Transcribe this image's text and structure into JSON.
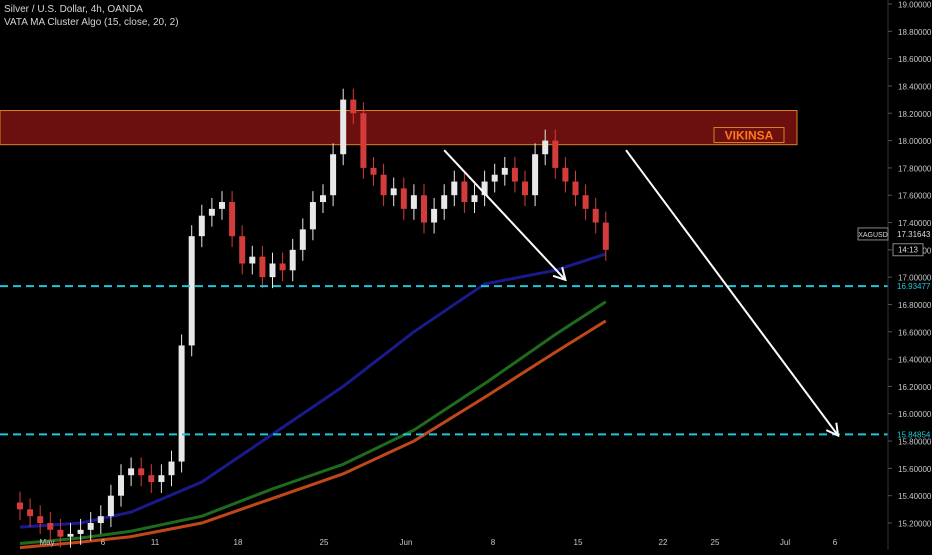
{
  "header": {
    "symbol_line": "Silver / U.S. Dollar, 4h, OANDA",
    "indicator_line": "VATA MA Cluster Algo (15, close, 20, 2)"
  },
  "chart_data": {
    "type": "line",
    "ylim": [
      15.15,
      19.0
    ],
    "y_ticks": [
      "19.00000",
      "18.80000",
      "18.60000",
      "18.40000",
      "18.20000",
      "18.00000",
      "17.80000",
      "17.60000",
      "17.40000",
      "17.20000",
      "17.00000",
      "16.80000",
      "16.60000",
      "16.40000",
      "16.20000",
      "16.00000",
      "15.80000",
      "15.60000",
      "15.40000",
      "15.20000"
    ],
    "x_ticks": [
      "May",
      "6",
      "11",
      "18",
      "25",
      "Jun",
      "8",
      "15",
      "22",
      "25",
      "Jul",
      "6"
    ],
    "series": [
      {
        "color": "#1a1a8c",
        "x": [
          0,
          6,
          11,
          18,
          25,
          32,
          39,
          46,
          53,
          58
        ],
        "values": [
          15.17,
          15.2,
          15.28,
          15.5,
          15.85,
          16.2,
          16.6,
          16.95,
          17.05,
          17.17
        ]
      },
      {
        "color": "#1e6b1e",
        "x": [
          0,
          6,
          11,
          18,
          25,
          32,
          39,
          46,
          53,
          58
        ],
        "values": [
          15.05,
          15.09,
          15.14,
          15.25,
          15.45,
          15.63,
          15.88,
          16.22,
          16.58,
          16.82
        ]
      },
      {
        "color": "#c0471a",
        "x": [
          0,
          6,
          11,
          18,
          25,
          32,
          39,
          46,
          53,
          58
        ],
        "values": [
          15.02,
          15.06,
          15.1,
          15.2,
          15.38,
          15.56,
          15.8,
          16.12,
          16.45,
          16.68
        ]
      }
    ],
    "price_bars": {
      "x": [
        0,
        1,
        2,
        3,
        4,
        5,
        6,
        7,
        8,
        9,
        10,
        11,
        12,
        13,
        14,
        15,
        16,
        17,
        18,
        19,
        20,
        21,
        22,
        23,
        24,
        25,
        26,
        27,
        28,
        29,
        30,
        31,
        32,
        33,
        34,
        35,
        36,
        37,
        38,
        39,
        40,
        41,
        42,
        43,
        44,
        45,
        46,
        47,
        48,
        49,
        50,
        51,
        52,
        53,
        54,
        55,
        56,
        57,
        58
      ],
      "close": [
        15.3,
        15.25,
        15.2,
        15.15,
        15.1,
        15.12,
        15.15,
        15.2,
        15.25,
        15.4,
        15.55,
        15.6,
        15.55,
        15.5,
        15.55,
        15.65,
        16.5,
        17.3,
        17.45,
        17.5,
        17.55,
        17.3,
        17.1,
        17.15,
        17.0,
        17.1,
        17.05,
        17.2,
        17.35,
        17.55,
        17.6,
        17.9,
        18.3,
        18.2,
        17.8,
        17.75,
        17.6,
        17.65,
        17.5,
        17.6,
        17.4,
        17.5,
        17.6,
        17.7,
        17.55,
        17.6,
        17.7,
        17.75,
        17.8,
        17.7,
        17.6,
        17.9,
        18.0,
        17.8,
        17.7,
        17.6,
        17.5,
        17.4,
        17.2
      ]
    },
    "hlines": [
      {
        "value": 16.93477,
        "label": "16.93477",
        "color": "#1fc8d8"
      },
      {
        "value": 15.84854,
        "label": "15.84854",
        "color": "#1fc8d8"
      }
    ],
    "resistance_zone": {
      "low": 17.97,
      "high": 18.22,
      "label": "VIKINSA"
    },
    "price_labels": [
      {
        "text": "XAGUSD",
        "value": 17.31643
      },
      {
        "text": "17.31643",
        "value": 17.31643
      },
      {
        "text": "14:13",
        "value": 17.23
      }
    ],
    "arrows": [
      {
        "from": [
          42,
          17.93
        ],
        "to": [
          54,
          16.98
        ]
      },
      {
        "from": [
          60,
          17.93
        ],
        "to": [
          81,
          15.84
        ]
      }
    ],
    "colors": {
      "background": "#000000",
      "zone_fill": "#6b0f0f",
      "zone_border": "#e0801e",
      "zone_label": "#ff7a1a",
      "arrow": "#ffffff",
      "axis_text": "#c8c8c8",
      "up_candle": "#e8e8e8",
      "down_candle": "#d43b3b"
    }
  }
}
